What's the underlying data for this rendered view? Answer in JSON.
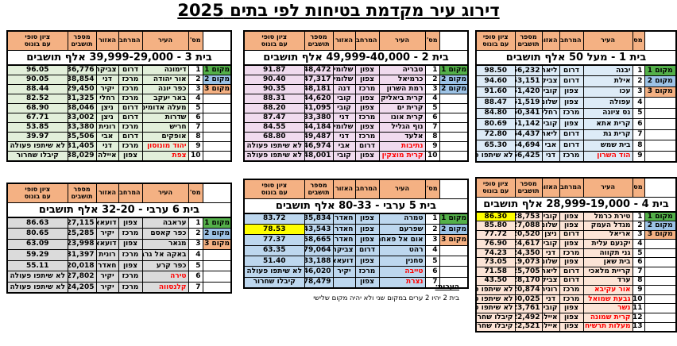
{
  "page_title": "דירוג עיר מקדמת בטיחות לפי בתים 2025",
  "colors": {
    "header_bg": "#F4B183",
    "place1_bg": "#54B04A",
    "place2_bg": "#9DC3E6",
    "place3_bg": "#F4B183",
    "highlight_bg": "#FFFF00",
    "red_text": "#FF0000"
  },
  "columns": {
    "num": "מס'",
    "city": "העיר",
    "district": "המרחב",
    "area": "האזור",
    "population": "מספר\nתושבים",
    "score": "ציון סופי\nעם בונוס"
  },
  "tables": [
    {
      "title": "בית 1 - מעל 50 אלף תושבים",
      "row_bg": "#DDEBF7",
      "places": [
        "מקום 1",
        "מקום 2",
        "מקום 3"
      ],
      "rows": [
        {
          "n": "1",
          "city": "יבנה",
          "district": "דרום",
          "area": "ליאת",
          "pop": "56,232",
          "score": "98.50"
        },
        {
          "n": "2",
          "city": "אילת",
          "district": "דרום",
          "area": "צביקה",
          "pop": "53,151",
          "score": "94.60"
        },
        {
          "n": "3",
          "city": "עכו",
          "district": "צפון",
          "area": "קובי",
          "pop": "51,420",
          "score": "91.60"
        },
        {
          "n": "4",
          "city": "עפולה",
          "district": "צפון",
          "area": "שלומי",
          "pop": "61,519",
          "score": "88.47"
        },
        {
          "n": "5",
          "city": "נס ציונה",
          "district": "מרכז",
          "area": "רחלי",
          "pop": "50,341",
          "score": "84.80"
        },
        {
          "n": "6",
          "city": "קרית אתא",
          "district": "צפון",
          "area": "קובי",
          "pop": "61,142",
          "score": "80.69"
        },
        {
          "n": "7",
          "city": "קרית גת",
          "district": "דרום",
          "area": "ליאת",
          "pop": "64,437",
          "score": "72.80"
        },
        {
          "n": "8",
          "city": "בית שמש",
          "district": "דרום",
          "area": "אבי",
          "pop": "154,694",
          "score": "65.30"
        },
        {
          "n": "9",
          "city": "הוד השרון",
          "district": "מרכז",
          "area": "דני",
          "pop": "66,425",
          "score": "לא שיתפו פעולה",
          "red": true,
          "status": true
        }
      ]
    },
    {
      "title": "בית 2 - 49,999-40,000 אלף תושבים",
      "row_bg": "#F0DBEE",
      "places": [
        "מקום 1",
        "מקום 2",
        "מקום 2"
      ],
      "rows": [
        {
          "n": "1",
          "city": "טבריה",
          "district": "צפון",
          "area": "שלומי",
          "pop": "48,472",
          "score": "91.87"
        },
        {
          "n": "2",
          "city": "כרמיאל",
          "district": "צפון",
          "area": "שלומי",
          "pop": "47,317",
          "score": "90.40"
        },
        {
          "n": "3",
          "city": "רמת השרון",
          "district": "מרכז",
          "area": "דנה",
          "pop": "48,181",
          "score": "90.35"
        },
        {
          "n": "4",
          "city": "קרית ביאליק",
          "district": "צפון",
          "area": "קובי",
          "pop": "44,620",
          "score": "88.31"
        },
        {
          "n": "5",
          "city": "קרית ים",
          "district": "צפון",
          "area": "קובי",
          "pop": "41,095",
          "score": "88.20"
        },
        {
          "n": "6",
          "city": "קרית אונו",
          "district": "מרכז",
          "area": "דני",
          "pop": "33,380",
          "score": "87.47"
        },
        {
          "n": "7",
          "city": "נוף הגליל",
          "district": "צפון",
          "area": "שלומי",
          "pop": "44,184",
          "score": "84.55"
        },
        {
          "n": "8",
          "city": "אלעד",
          "district": "מרכז",
          "area": "דני",
          "pop": "49,487",
          "score": "68.80"
        },
        {
          "n": "9",
          "city": "נתיבות",
          "district": "דרום",
          "area": "אבי",
          "pop": "46,974",
          "score": "לא שיתפו פעולה",
          "red": true,
          "status": true
        },
        {
          "n": "10",
          "city": "קרית מוצקין",
          "district": "צפון",
          "area": "קובי",
          "pop": "48,001",
          "score": "לא שיתפו פעולה",
          "red": true,
          "status": true
        }
      ]
    },
    {
      "title": "בית 3 - 39,999-29,000 אלף תושבים",
      "row_bg": "#E2EFDA",
      "places": [
        "מקום 1",
        "מקום 2",
        "מקום 3"
      ],
      "rows": [
        {
          "n": "1",
          "city": "דימונה",
          "district": "דרום",
          "area": "צביקה",
          "pop": "36,776",
          "score": "96.05"
        },
        {
          "n": "2",
          "city": "אור יהודה",
          "district": "מרכז",
          "area": "דני",
          "pop": "38,854",
          "score": "90.05"
        },
        {
          "n": "3",
          "city": "כפר יונה",
          "district": "מרכז",
          "area": "יקיר",
          "pop": "29,450",
          "score": "88.44"
        },
        {
          "n": "4",
          "city": "באר יעקב",
          "district": "מרכז",
          "area": "רחלי",
          "pop": "31,325",
          "score": "82.52"
        },
        {
          "n": "5",
          "city": "מעלה אדומים",
          "district": "דרום",
          "area": "ניצן",
          "pop": "38,046",
          "score": "68.90"
        },
        {
          "n": "6",
          "city": "שדרות",
          "district": "דרום",
          "area": "ניצן",
          "pop": "33,002",
          "score": "67.71"
        },
        {
          "n": "7",
          "city": "חריש",
          "district": "מרכז",
          "area": "רונית",
          "pop": "33,380",
          "score": "53.85"
        },
        {
          "n": "8",
          "city": "אופקים",
          "district": "דרום",
          "area": "אבי",
          "pop": "35,506",
          "score": "39.97"
        },
        {
          "n": "9",
          "city": "יהוד מונוסון",
          "district": "מרכז",
          "area": "דני",
          "pop": "31,405",
          "score": "לא שיתפו פעולה",
          "red": true,
          "status": true
        },
        {
          "n": "10",
          "city": "צפת",
          "district": "צפון",
          "area": "איילה",
          "pop": "38,029",
          "score": "קיבלו שחרור",
          "red": true,
          "status": true
        }
      ]
    },
    {
      "title": "בית 4 - 28,999-19,000 אלף תושבים",
      "row_bg": "#FCE4D6",
      "places": [
        "מקום 1",
        "מקום 2",
        "מקום 3"
      ],
      "rows": [
        {
          "n": "1",
          "city": "טירת כרמל",
          "district": "צפון",
          "area": "קובי",
          "pop": "28,753",
          "score": "86.30",
          "hl": true
        },
        {
          "n": "2",
          "city": "מגדל העמק",
          "district": "צפון",
          "area": "שלומי",
          "pop": "27,088",
          "score": "85.80"
        },
        {
          "n": "3",
          "city": "אריאל",
          "district": "דרום",
          "area": "ניצן",
          "pop": "20,520",
          "score": "77.72"
        },
        {
          "n": "4",
          "city": "יקנעם עלית",
          "district": "צפון",
          "area": "קובי",
          "pop": "24,617",
          "score": "76.90"
        },
        {
          "n": "5",
          "city": "גני תקווה",
          "district": "מרכז",
          "area": "דני",
          "pop": "24,350",
          "score": "74.23"
        },
        {
          "n": "6",
          "city": "בית שאן",
          "district": "צפון",
          "area": "שלומי",
          "pop": "19,073",
          "score": "73.05"
        },
        {
          "n": "7",
          "city": "קריית מלאכי",
          "district": "דרום",
          "area": "ליאת",
          "pop": "25,705",
          "score": "71.58"
        },
        {
          "n": "8",
          "city": "ערד",
          "district": "דרום",
          "area": "צביקה",
          "pop": "28,170",
          "score": "43.50"
        },
        {
          "n": "9",
          "city": "אור עקיבא",
          "district": "מרכז",
          "area": "רונית",
          "pop": "20,874",
          "score": "לא שיתפו פעולה",
          "red": true,
          "status": true
        },
        {
          "n": "10",
          "city": "גבעת שמואל",
          "district": "מרכז",
          "area": "דני",
          "pop": "30,025",
          "score": "לא שיתפו פעולה",
          "red": true,
          "status": true
        },
        {
          "n": "11",
          "city": "נשר",
          "district": "צפון",
          "area": "קובי",
          "pop": "23,761",
          "score": "לא שיתפו פעולה",
          "red": true,
          "status": true
        },
        {
          "n": "12",
          "city": "קרית שמונה",
          "district": "צפון",
          "area": "איילה",
          "pop": "22,492",
          "score": "קיבלו שחרור",
          "red": true,
          "status": true
        },
        {
          "n": "13",
          "city": "מעלות תרשיחא",
          "district": "צפון",
          "area": "איילה",
          "pop": "22,521",
          "score": "קיבלו שחרור",
          "red": true,
          "status": true
        }
      ]
    },
    {
      "title": "בית 5 ערבי - 80-33 אלף תושבים",
      "row_bg": "#BDD7EE",
      "places": [
        "מקום 1",
        "מקום 2",
        "מקום 3"
      ],
      "rows": [
        {
          "n": "1",
          "city": "טמרה",
          "district": "צפון",
          "area": "חאדר",
          "pop": "35,834",
          "score": "83.72"
        },
        {
          "n": "2",
          "city": "שפרעם",
          "district": "צפון",
          "area": "חאדר",
          "pop": "43,543",
          "score": "78.53",
          "hl": true
        },
        {
          "n": "3",
          "city": "אום אל פאחם",
          "district": "צפון",
          "area": "חאדר",
          "pop": "58,665",
          "score": "77.37"
        },
        {
          "n": "4",
          "city": "רהט",
          "district": "דרום",
          "area": "צביקה",
          "pop": "79,064",
          "score": "63.35"
        },
        {
          "n": "5",
          "city": "סחנין",
          "district": "צפון",
          "area": "דועאא",
          "pop": "33,188",
          "score": "51.40"
        },
        {
          "n": "6",
          "city": "טייבה",
          "district": "מרכז",
          "area": "יקיר",
          "pop": "46,020",
          "score": "לא שיתפו פעולה",
          "red": true,
          "status": true
        },
        {
          "n": "7",
          "city": "נצרת",
          "district": "צפון",
          "area": "",
          "pop": "78,479",
          "score": "קיבלו שחרור",
          "red": true,
          "status": true
        }
      ]
    },
    {
      "title": "בית 6 ערבי - 32-20 אלף תושבים",
      "row_bg": "#DBDBDB",
      "places": [
        "מקום 1",
        "מקום 2",
        "מקום 3"
      ],
      "rows": [
        {
          "n": "1",
          "city": "עראבה",
          "district": "צפון",
          "area": "דועאא",
          "pop": "27,115",
          "score": "86.63"
        },
        {
          "n": "2",
          "city": "כפר קאסם",
          "district": "מרכז",
          "area": "יקיר",
          "pop": "25,285",
          "score": "80.65"
        },
        {
          "n": "3",
          "city": "מגאר",
          "district": "צפון",
          "area": "דועאא",
          "pop": "23,998",
          "score": "63.09"
        },
        {
          "n": "4",
          "city": "באקה אל גרבייה",
          "district": "מרכז",
          "area": "רונית",
          "pop": "31,397",
          "score": "59.29"
        },
        {
          "n": "5",
          "city": "כפר קרע",
          "district": "צפון",
          "area": "חאדר",
          "pop": "20,018",
          "score": "55.11"
        },
        {
          "n": "6",
          "city": "טירה",
          "district": "מרכז",
          "area": "יקיר",
          "pop": "27,802",
          "score": "לא שיתפו פעולה",
          "red": true,
          "status": true
        },
        {
          "n": "7",
          "city": "קלנסווה",
          "district": "מרכז",
          "area": "יקיר",
          "pop": "24,205",
          "score": "לא שיתפו פעולה",
          "red": true,
          "status": true
        }
      ]
    }
  ],
  "notes": {
    "heading": "הערות:",
    "line": "בית 2 יהיו 2 ערים במקום שני ולא יהיה מקום שלישי"
  }
}
